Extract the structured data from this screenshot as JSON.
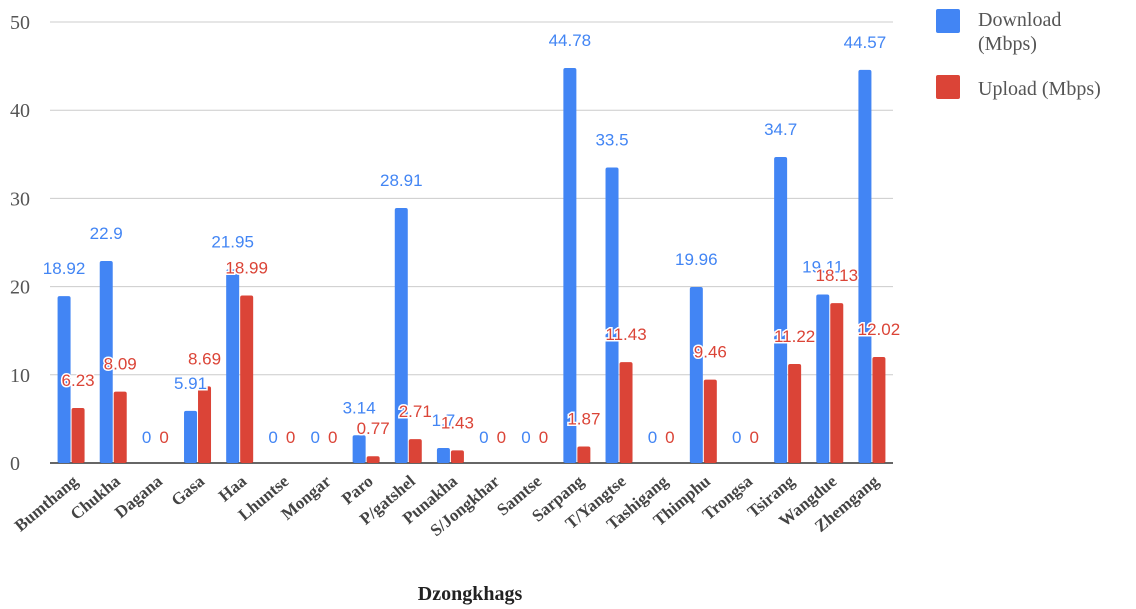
{
  "chart_data": {
    "type": "bar",
    "xlabel": "Dzongkhags",
    "ylabel": "",
    "ylim": [
      0,
      50
    ],
    "yticks": [
      0,
      10,
      20,
      30,
      40,
      50
    ],
    "grid": true,
    "legend_position": "top-right",
    "categories": [
      "Bumthang",
      "Chukha",
      "Dagana",
      "Gasa",
      "Haa",
      "Lhuntse",
      "Mongar",
      "Paro",
      "P/gatshel",
      "Punakha",
      "S/Jongkhar",
      "Samtse",
      "Sarpang",
      "T/Yangtse",
      "Tashigang",
      "Thimphu",
      "Trongsa",
      "Tsirang",
      "Wangdue",
      "Zhemgang"
    ],
    "series": [
      {
        "name": "Download (Mbps)",
        "color": "#4285f4",
        "values": [
          18.92,
          22.9,
          0,
          5.91,
          21.95,
          0,
          0,
          3.14,
          28.91,
          1.7,
          0,
          0,
          44.78,
          33.5,
          0,
          19.96,
          0,
          34.7,
          19.11,
          44.57
        ],
        "labels": [
          "18.92",
          "22.9",
          "0",
          "5.91",
          "21.95",
          "0",
          "0",
          "3.14",
          "28.91",
          "1.7",
          "0",
          "0",
          "44.78",
          "33.5",
          "0",
          "19.96",
          "0",
          "34.7",
          "19.11",
          "44.57"
        ]
      },
      {
        "name": "Upload (Mbps)",
        "color": "#db4437",
        "values": [
          6.23,
          8.09,
          0,
          8.69,
          18.99,
          0,
          0,
          0.77,
          2.71,
          1.43,
          0,
          0,
          1.87,
          11.43,
          0,
          9.46,
          0,
          11.22,
          18.13,
          12.02
        ],
        "labels": [
          "6.23",
          "8.09",
          "0",
          "8.69",
          "18.99",
          "0",
          "0",
          "0.77",
          "2.71",
          "1.43",
          "0",
          "0",
          "1.87",
          "11.43",
          "0",
          "9.46",
          "0",
          "11.22",
          "18.13",
          "12.02"
        ]
      }
    ]
  }
}
